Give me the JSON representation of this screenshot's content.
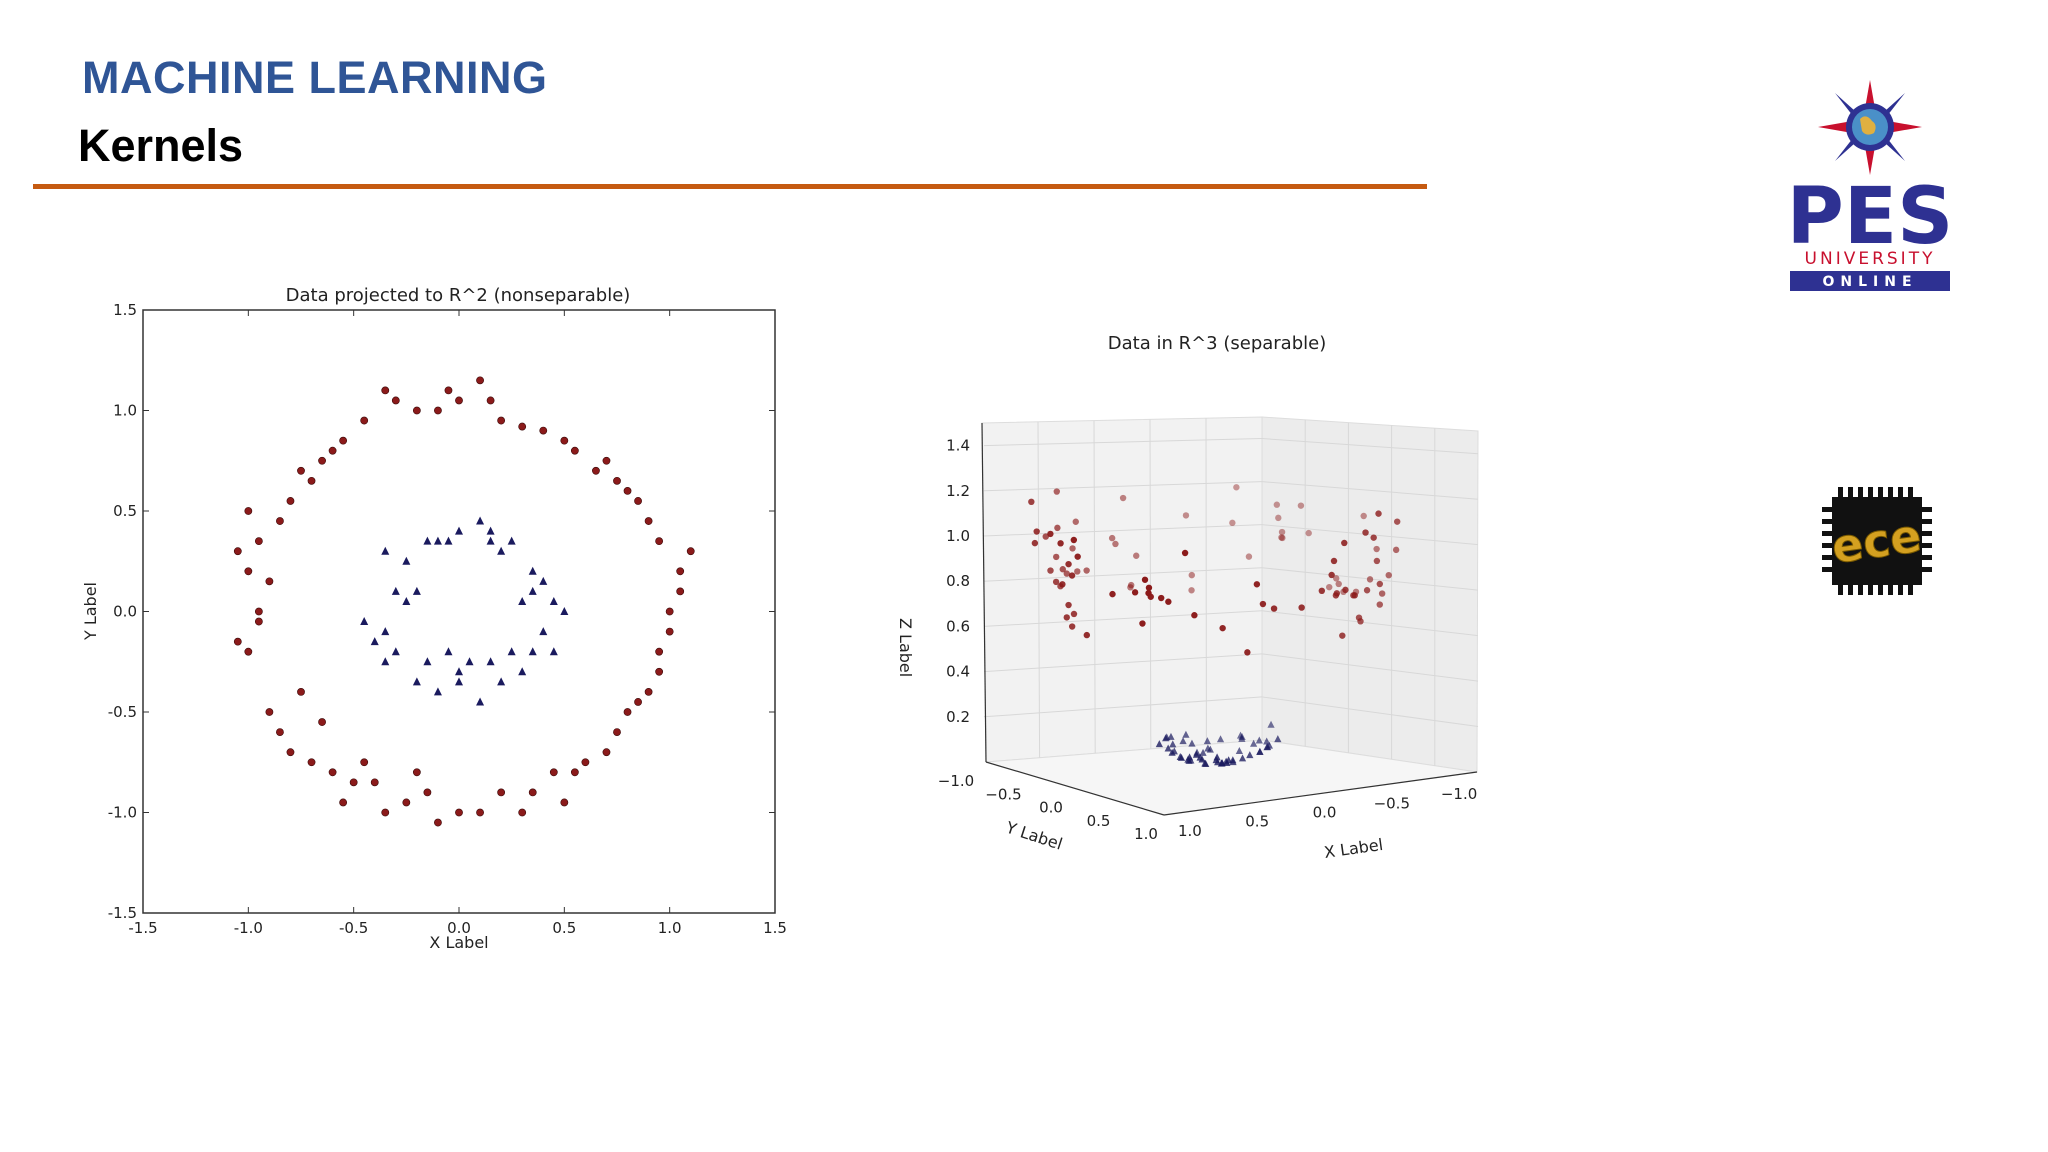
{
  "slide": {
    "title": "MACHINE LEARNING",
    "subtitle": "Kernels"
  },
  "logos": {
    "pes": {
      "name": "PES",
      "line1": "UNIVERSITY",
      "line2": "ONLINE",
      "icon": "compass-globe-icon"
    },
    "ece": {
      "name": "ece",
      "icon": "chip-icon"
    }
  },
  "colors": {
    "title": "#2f5596",
    "rule": "#c55a11",
    "pes_blue": "#2e3192",
    "pes_red": "#c8102e",
    "class_outer": "#8b1a1a",
    "class_inner": "#1a1a5e"
  },
  "chart_data": [
    {
      "type": "scatter",
      "title": "Data projected to R^2 (nonseparable)",
      "xlabel": "X Label",
      "ylabel": "Y Label",
      "xlim": [
        -1.5,
        1.5
      ],
      "ylim": [
        -1.5,
        1.5
      ],
      "xticks": [
        "-1.5",
        "-1.0",
        "-0.5",
        "0.0",
        "0.5",
        "1.0",
        "1.5"
      ],
      "yticks": [
        "-1.5",
        "-1.0",
        "-0.5",
        "0.0",
        "0.5",
        "1.0",
        "1.5"
      ],
      "series": [
        {
          "marker": "circle",
          "color": "#8b1a1a",
          "points": [
            [
              -1.05,
              0.3
            ],
            [
              -1.0,
              0.5
            ],
            [
              -0.95,
              0.0
            ],
            [
              -1.0,
              -0.2
            ],
            [
              -1.05,
              -0.15
            ],
            [
              -0.9,
              -0.5
            ],
            [
              -0.85,
              -0.6
            ],
            [
              -0.8,
              -0.7
            ],
            [
              -0.7,
              -0.75
            ],
            [
              -0.6,
              -0.8
            ],
            [
              -0.5,
              -0.85
            ],
            [
              -0.55,
              -0.95
            ],
            [
              -0.4,
              -0.85
            ],
            [
              -0.35,
              -1.0
            ],
            [
              -0.2,
              -0.8
            ],
            [
              -0.25,
              -0.95
            ],
            [
              -0.1,
              -1.05
            ],
            [
              0.0,
              -1.0
            ],
            [
              0.1,
              -1.0
            ],
            [
              0.2,
              -0.9
            ],
            [
              0.3,
              -1.0
            ],
            [
              0.35,
              -0.9
            ],
            [
              0.5,
              -0.95
            ],
            [
              0.55,
              -0.8
            ],
            [
              0.6,
              -0.75
            ],
            [
              0.7,
              -0.7
            ],
            [
              0.75,
              -0.6
            ],
            [
              0.8,
              -0.5
            ],
            [
              0.9,
              -0.4
            ],
            [
              0.95,
              -0.3
            ],
            [
              1.0,
              -0.1
            ],
            [
              1.0,
              0.0
            ],
            [
              1.05,
              0.1
            ],
            [
              1.1,
              0.3
            ],
            [
              1.05,
              0.2
            ],
            [
              0.95,
              0.35
            ],
            [
              0.9,
              0.45
            ],
            [
              0.85,
              0.55
            ],
            [
              0.8,
              0.6
            ],
            [
              0.75,
              0.65
            ],
            [
              0.65,
              0.7
            ],
            [
              0.55,
              0.8
            ],
            [
              0.5,
              0.85
            ],
            [
              0.4,
              0.9
            ],
            [
              0.3,
              0.92
            ],
            [
              0.2,
              0.95
            ],
            [
              0.15,
              1.05
            ],
            [
              0.0,
              1.05
            ],
            [
              -0.1,
              1.0
            ],
            [
              -0.2,
              1.0
            ],
            [
              -0.3,
              1.05
            ],
            [
              -0.35,
              1.1
            ],
            [
              -0.45,
              0.95
            ],
            [
              -0.6,
              0.8
            ],
            [
              -0.65,
              0.75
            ],
            [
              -0.7,
              0.65
            ],
            [
              -0.8,
              0.55
            ],
            [
              -0.85,
              0.45
            ],
            [
              -0.95,
              0.35
            ],
            [
              -1.0,
              0.2
            ],
            [
              -0.9,
              0.15
            ],
            [
              -0.95,
              -0.05
            ],
            [
              -0.75,
              -0.4
            ],
            [
              -0.65,
              -0.55
            ],
            [
              -0.45,
              -0.75
            ],
            [
              -0.15,
              -0.9
            ],
            [
              0.45,
              -0.8
            ],
            [
              0.85,
              -0.45
            ],
            [
              0.95,
              -0.2
            ],
            [
              0.7,
              0.75
            ],
            [
              -0.55,
              0.85
            ],
            [
              -0.75,
              0.7
            ],
            [
              0.1,
              1.15
            ],
            [
              -0.05,
              1.1
            ]
          ]
        },
        {
          "marker": "triangle",
          "color": "#1a1a5e",
          "points": [
            [
              -0.35,
              0.3
            ],
            [
              -0.25,
              0.25
            ],
            [
              -0.3,
              0.1
            ],
            [
              -0.45,
              -0.05
            ],
            [
              -0.4,
              -0.15
            ],
            [
              -0.35,
              -0.25
            ],
            [
              -0.2,
              -0.35
            ],
            [
              -0.1,
              -0.4
            ],
            [
              0.0,
              -0.35
            ],
            [
              0.1,
              -0.45
            ],
            [
              0.2,
              -0.35
            ],
            [
              0.3,
              -0.3
            ],
            [
              0.35,
              -0.2
            ],
            [
              0.45,
              -0.2
            ],
            [
              0.5,
              0.0
            ],
            [
              0.45,
              0.05
            ],
            [
              0.35,
              0.1
            ],
            [
              0.35,
              0.2
            ],
            [
              0.2,
              0.3
            ],
            [
              0.15,
              0.35
            ],
            [
              0.1,
              0.45
            ],
            [
              0.0,
              0.4
            ],
            [
              -0.1,
              0.35
            ],
            [
              -0.15,
              0.35
            ],
            [
              -0.2,
              0.1
            ],
            [
              -0.35,
              -0.1
            ],
            [
              -0.3,
              -0.2
            ],
            [
              -0.15,
              -0.25
            ],
            [
              -0.05,
              -0.2
            ],
            [
              0.05,
              -0.25
            ],
            [
              0.15,
              -0.25
            ],
            [
              0.25,
              -0.2
            ],
            [
              0.3,
              0.05
            ],
            [
              0.4,
              0.15
            ],
            [
              0.25,
              0.35
            ],
            [
              0.15,
              0.4
            ],
            [
              -0.05,
              0.35
            ],
            [
              -0.25,
              0.05
            ],
            [
              0.0,
              -0.3
            ],
            [
              0.4,
              -0.1
            ]
          ]
        }
      ]
    },
    {
      "type": "scatter",
      "title": "Data in R^3 (separable)",
      "xlabel": "X Label",
      "ylabel": "Y Label",
      "zlabel": "Z Label",
      "xticks": [
        "1.0",
        "0.5",
        "0.0",
        "−0.5",
        "−1.0"
      ],
      "yticks": [
        "−1.0",
        "−0.5",
        "0.0",
        "0.5",
        "1.0"
      ],
      "zticks": [
        "0.2",
        "0.4",
        "0.6",
        "0.8",
        "1.0",
        "1.2",
        "1.4"
      ],
      "zlim": [
        0.0,
        1.5
      ],
      "grid": true
    }
  ]
}
